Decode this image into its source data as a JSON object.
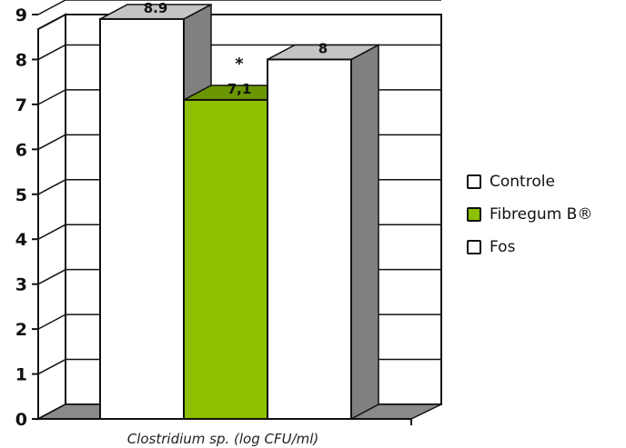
{
  "chart_data": {
    "type": "bar",
    "style": "3d",
    "ylim": [
      0,
      9
    ],
    "yticks": [
      0,
      1,
      2,
      3,
      4,
      5,
      6,
      7,
      8,
      9
    ],
    "grid": true,
    "xlabel": "Clostridium sp. (log CFU/ml)",
    "legend_position": "right",
    "series": [
      {
        "name": "Controle",
        "value": 8.9,
        "label": "8.9",
        "color": "#ffffff",
        "annotation": ""
      },
      {
        "name": "Fibregum B®",
        "value": 7.1,
        "label": "7,1",
        "color": "#8cc000",
        "annotation": "*"
      },
      {
        "name": "Fos",
        "value": 8,
        "label": "8",
        "color": "#ffffff",
        "annotation": ""
      }
    ]
  }
}
